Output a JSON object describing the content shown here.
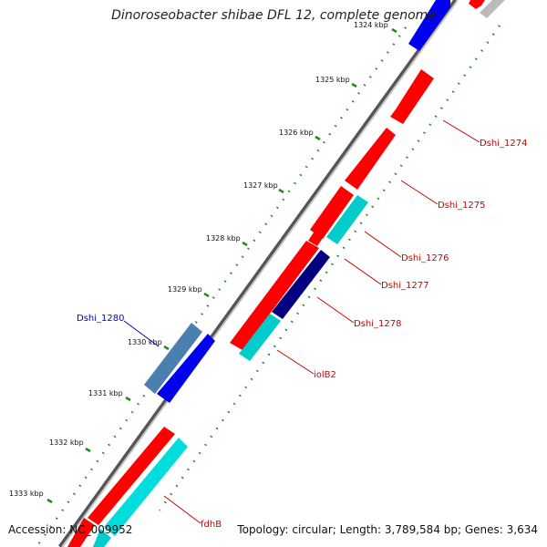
{
  "title": "Dinoroseobacter shibae DFL 12, complete genome",
  "accession": "Accession: NC_009952",
  "topology": "Topology: circular; Length: 3,789,584 bp; Genes: 3,634",
  "colors": {
    "forward_cds": "#ff0000",
    "reverse_cds": "#0000ff",
    "rna": "#00cccc",
    "dark_blue": "#000080",
    "steel": "#4a7fb0",
    "backbone": "#777777",
    "tick_dot": "#228822",
    "label_red": "#cc0000",
    "label_blue": "#0000cc"
  },
  "kbp_ticks": [
    "1324 kbp",
    "1325 kbp",
    "1326 kbp",
    "1327 kbp",
    "1328 kbp",
    "1329 kbp",
    "1330 kbp",
    "1331 kbp",
    "1332 kbp",
    "1333 kbp"
  ],
  "gene_labels": [
    "Dshi_1274",
    "Dshi_1275",
    "Dshi_1276",
    "Dshi_1277",
    "Dshi_1278",
    "iolB2",
    "fdhB",
    "Dshi_1280"
  ]
}
